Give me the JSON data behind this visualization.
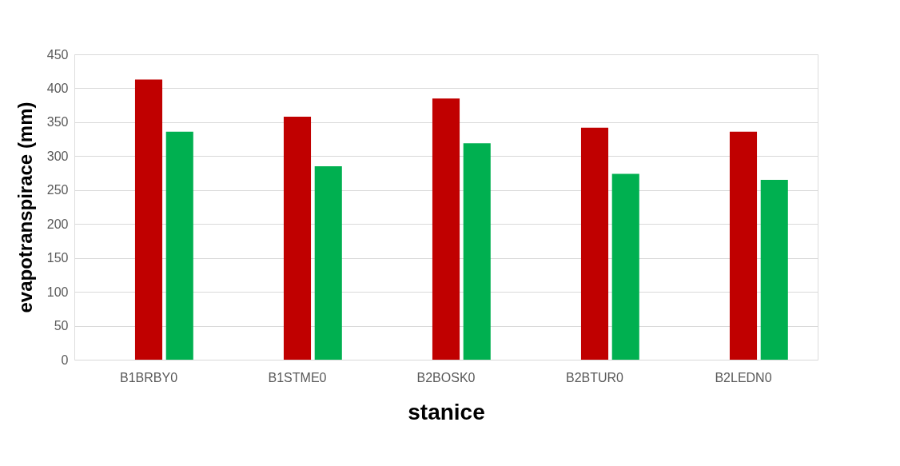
{
  "chart_data": {
    "type": "bar",
    "xlabel": "stanice",
    "ylabel": "evapotranspirace (mm)",
    "categories": [
      "B1BRBY0",
      "B1STME0",
      "B2BOSK0",
      "B2BTUR0",
      "B2LEDN0"
    ],
    "series": [
      {
        "values": [
          null,
          null,
          null,
          null,
          null
        ]
      },
      {
        "color": "#c00000",
        "values": [
          413,
          358,
          385,
          342,
          336
        ]
      },
      {
        "color": "#00b050",
        "values": [
          336,
          285,
          319,
          274,
          265
        ]
      }
    ],
    "ylim": [
      0,
      450
    ],
    "yticks": [
      0,
      50,
      100,
      150,
      200,
      250,
      300,
      350,
      400,
      450
    ],
    "grid": "y",
    "legend": false
  }
}
